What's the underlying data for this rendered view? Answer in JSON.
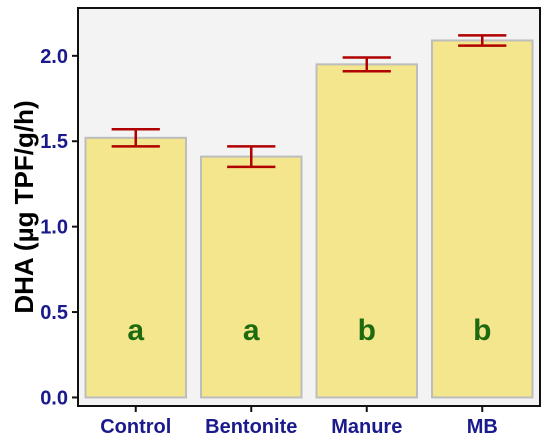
{
  "chart_data": {
    "type": "bar",
    "title": "",
    "xlabel": "",
    "ylabel": "DHA (µg TPF/g/h)",
    "categories": [
      "Control",
      "Bentonite",
      "Manure",
      "MB"
    ],
    "values": [
      1.52,
      1.41,
      1.95,
      2.09
    ],
    "error": [
      0.05,
      0.06,
      0.04,
      0.03
    ],
    "letters": [
      "a",
      "a",
      "b",
      "b"
    ],
    "ylim": [
      -0.05,
      2.28
    ],
    "yticks": [
      0.0,
      0.5,
      1.0,
      1.5,
      2.0
    ],
    "ytick_labels": [
      "0.0",
      "0.5",
      "1.0",
      "1.5",
      "2.0"
    ],
    "letter_y": 0.4,
    "grid": false,
    "colors": {
      "bar_fill": "#f4e68c",
      "bar_stroke": "#bdbdbd",
      "error_bar": "#b00000",
      "panel": "#f3f3f3",
      "letter": "#1e6b0f",
      "tick_label": "#1a1a8c"
    }
  }
}
